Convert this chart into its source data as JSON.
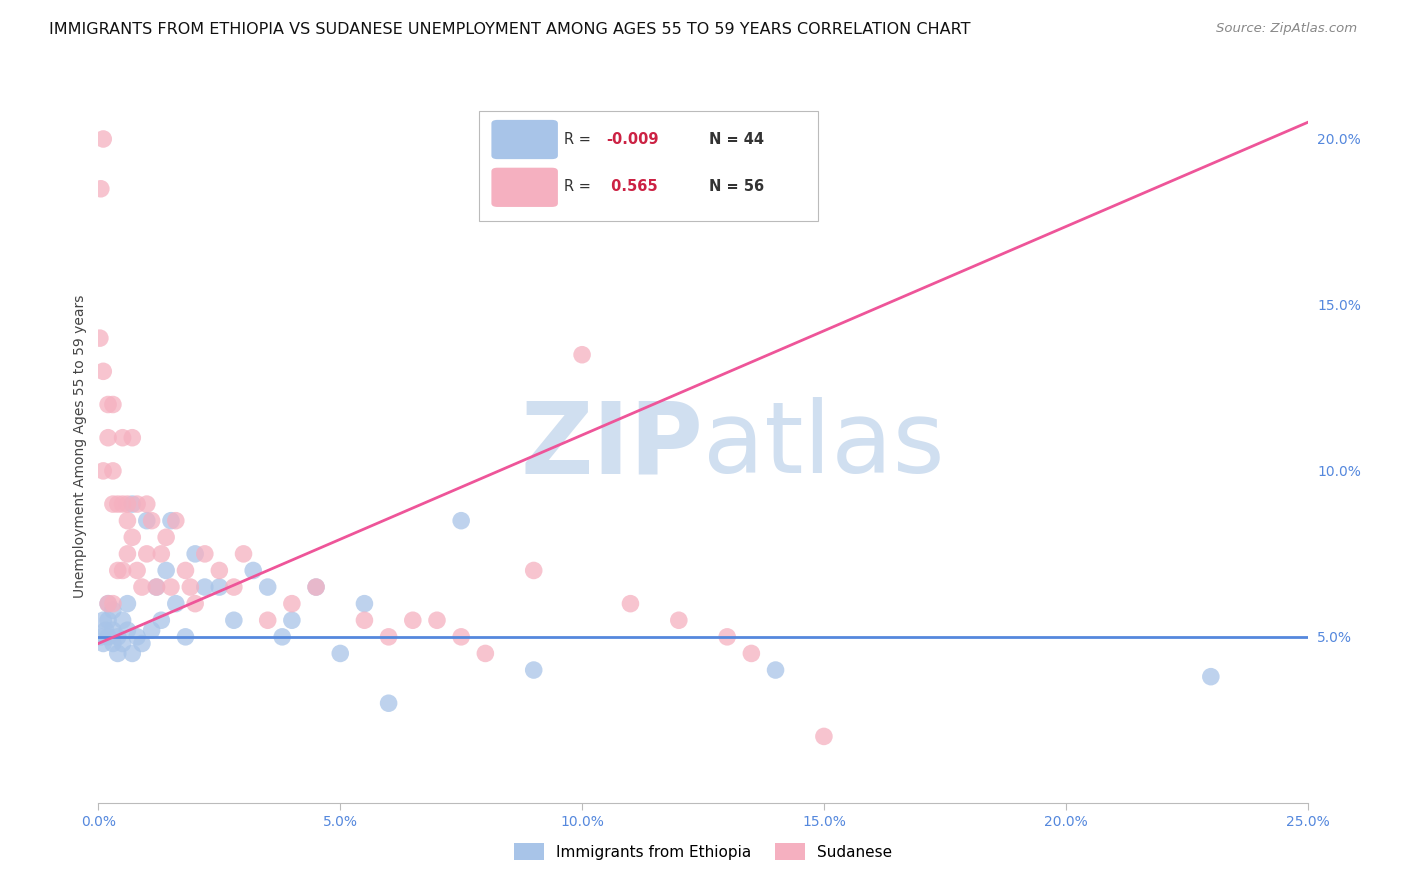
{
  "title": "IMMIGRANTS FROM ETHIOPIA VS SUDANESE UNEMPLOYMENT AMONG AGES 55 TO 59 YEARS CORRELATION CHART",
  "source": "Source: ZipAtlas.com",
  "ylabel": "Unemployment Among Ages 55 to 59 years",
  "right_yticks": [
    "5.0%",
    "10.0%",
    "15.0%",
    "20.0%"
  ],
  "right_ytick_vals": [
    0.05,
    0.1,
    0.15,
    0.2
  ],
  "legend_blue_label": "Immigrants from Ethiopia",
  "legend_pink_label": "Sudanese",
  "legend_blue_r": "-0.009",
  "legend_pink_r": " 0.565",
  "legend_blue_n": "44",
  "legend_pink_n": "56",
  "blue_color": "#a8c4e8",
  "pink_color": "#f5b0c0",
  "blue_line_color": "#5588dd",
  "pink_line_color": "#ee5599",
  "watermark_zip": "ZIP",
  "watermark_atlas": "atlas",
  "watermark_color": "#d0dff0",
  "blue_line_x": [
    0.0,
    0.25
  ],
  "blue_line_y": [
    0.05,
    0.05
  ],
  "pink_line_x": [
    0.0,
    0.25
  ],
  "pink_line_y": [
    0.048,
    0.205
  ],
  "blue_scatter_x": [
    0.0005,
    0.001,
    0.001,
    0.0015,
    0.002,
    0.002,
    0.002,
    0.003,
    0.003,
    0.003,
    0.004,
    0.004,
    0.005,
    0.005,
    0.006,
    0.006,
    0.007,
    0.007,
    0.008,
    0.009,
    0.01,
    0.011,
    0.012,
    0.013,
    0.014,
    0.015,
    0.016,
    0.018,
    0.02,
    0.022,
    0.025,
    0.028,
    0.032,
    0.035,
    0.038,
    0.04,
    0.045,
    0.05,
    0.055,
    0.06,
    0.075,
    0.09,
    0.14,
    0.23
  ],
  "blue_scatter_y": [
    0.05,
    0.048,
    0.055,
    0.052,
    0.05,
    0.055,
    0.06,
    0.048,
    0.052,
    0.058,
    0.05,
    0.045,
    0.055,
    0.048,
    0.052,
    0.06,
    0.09,
    0.045,
    0.05,
    0.048,
    0.085,
    0.052,
    0.065,
    0.055,
    0.07,
    0.085,
    0.06,
    0.05,
    0.075,
    0.065,
    0.065,
    0.055,
    0.07,
    0.065,
    0.05,
    0.055,
    0.065,
    0.045,
    0.06,
    0.03,
    0.085,
    0.04,
    0.04,
    0.038
  ],
  "pink_scatter_x": [
    0.0003,
    0.0005,
    0.001,
    0.001,
    0.001,
    0.002,
    0.002,
    0.002,
    0.003,
    0.003,
    0.003,
    0.003,
    0.004,
    0.004,
    0.005,
    0.005,
    0.005,
    0.006,
    0.006,
    0.006,
    0.007,
    0.007,
    0.008,
    0.008,
    0.009,
    0.01,
    0.01,
    0.011,
    0.012,
    0.013,
    0.014,
    0.015,
    0.016,
    0.018,
    0.019,
    0.02,
    0.022,
    0.025,
    0.028,
    0.03,
    0.035,
    0.04,
    0.045,
    0.055,
    0.06,
    0.065,
    0.07,
    0.075,
    0.08,
    0.09,
    0.1,
    0.11,
    0.12,
    0.13,
    0.135,
    0.15
  ],
  "pink_scatter_y": [
    0.14,
    0.185,
    0.2,
    0.13,
    0.1,
    0.12,
    0.11,
    0.06,
    0.1,
    0.09,
    0.06,
    0.12,
    0.09,
    0.07,
    0.11,
    0.09,
    0.07,
    0.09,
    0.085,
    0.075,
    0.08,
    0.11,
    0.09,
    0.07,
    0.065,
    0.09,
    0.075,
    0.085,
    0.065,
    0.075,
    0.08,
    0.065,
    0.085,
    0.07,
    0.065,
    0.06,
    0.075,
    0.07,
    0.065,
    0.075,
    0.055,
    0.06,
    0.065,
    0.055,
    0.05,
    0.055,
    0.055,
    0.05,
    0.045,
    0.07,
    0.135,
    0.06,
    0.055,
    0.05,
    0.045,
    0.02
  ],
  "xlim": [
    0.0,
    0.25
  ],
  "ylim": [
    0.0,
    0.215
  ],
  "xticks": [
    0.0,
    0.05,
    0.1,
    0.15,
    0.2,
    0.25
  ],
  "xtick_labels": [
    "0.0%",
    "5.0%",
    "10.0%",
    "15.0%",
    "20.0%",
    "25.0%"
  ],
  "grid_color": "#dddddd",
  "bg_color": "#ffffff",
  "title_fontsize": 11.5,
  "axis_label_fontsize": 10,
  "tick_fontsize": 10,
  "source_fontsize": 9.5
}
